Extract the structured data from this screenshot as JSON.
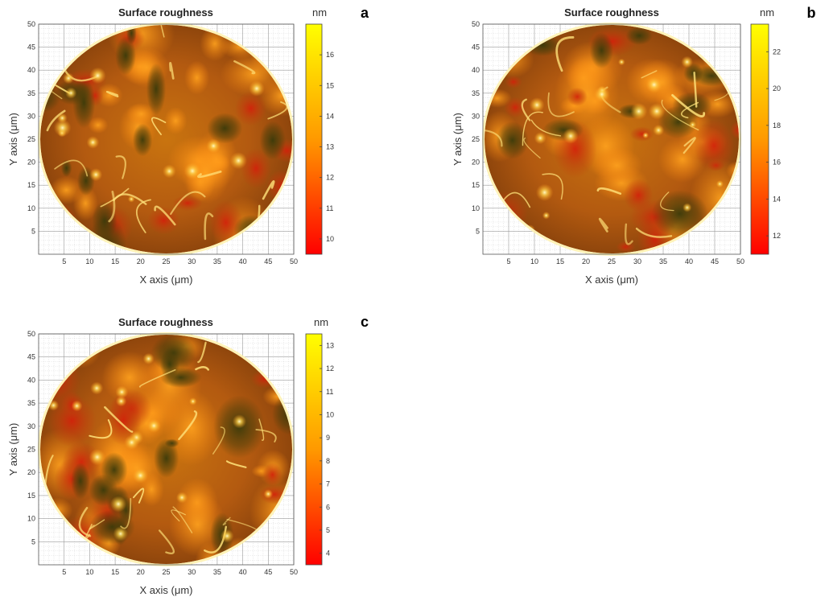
{
  "chart_data": [
    {
      "panel": "a",
      "type": "heatmap",
      "title": "Surface roughness",
      "xlabel": "X axis (μm)",
      "ylabel": "Y axis (μm)",
      "xlim": [
        0,
        50
      ],
      "ylim": [
        0,
        50
      ],
      "x_ticks": [
        5,
        10,
        15,
        20,
        25,
        30,
        35,
        40,
        45,
        50
      ],
      "y_ticks": [
        5,
        10,
        15,
        20,
        25,
        30,
        35,
        40,
        45,
        50
      ],
      "colorbar": {
        "unit": "nm",
        "range": [
          9.5,
          17
        ],
        "ticks": [
          10,
          11,
          12,
          13,
          14,
          15,
          16
        ]
      },
      "colors": {
        "low": "#ff0000",
        "mid": "#ff9900",
        "high": "#ffff00",
        "surface_dark": "#3b3a0c"
      }
    },
    {
      "panel": "b",
      "type": "heatmap",
      "title": "Surface roughness",
      "xlabel": "X axis (μm)",
      "ylabel": "Y axis (μm)",
      "xlim": [
        0,
        50
      ],
      "ylim": [
        0,
        50
      ],
      "x_ticks": [
        5,
        10,
        15,
        20,
        25,
        30,
        35,
        40,
        45,
        50
      ],
      "y_ticks": [
        5,
        10,
        15,
        20,
        25,
        30,
        35,
        40,
        45,
        50
      ],
      "colorbar": {
        "unit": "nm",
        "range": [
          11,
          23.5
        ],
        "ticks": [
          12,
          14,
          16,
          18,
          20,
          22
        ]
      },
      "colors": {
        "low": "#ff0000",
        "mid": "#ff9900",
        "high": "#ffff00",
        "surface_dark": "#3b3a0c"
      }
    },
    {
      "panel": "c",
      "type": "heatmap",
      "title": "Surface roughness",
      "xlabel": "X axis (μm)",
      "ylabel": "Y axis (μm)",
      "xlim": [
        0,
        50
      ],
      "ylim": [
        0,
        50
      ],
      "x_ticks": [
        5,
        10,
        15,
        20,
        25,
        30,
        35,
        40,
        45,
        50
      ],
      "y_ticks": [
        5,
        10,
        15,
        20,
        25,
        30,
        35,
        40,
        45,
        50
      ],
      "colorbar": {
        "unit": "nm",
        "range": [
          3.5,
          13.5
        ],
        "ticks": [
          4,
          5,
          6,
          7,
          8,
          9,
          10,
          11,
          12,
          13
        ]
      },
      "colors": {
        "low": "#ff0000",
        "mid": "#ff9900",
        "high": "#ffff00",
        "surface_dark": "#3b3a0c"
      }
    }
  ]
}
